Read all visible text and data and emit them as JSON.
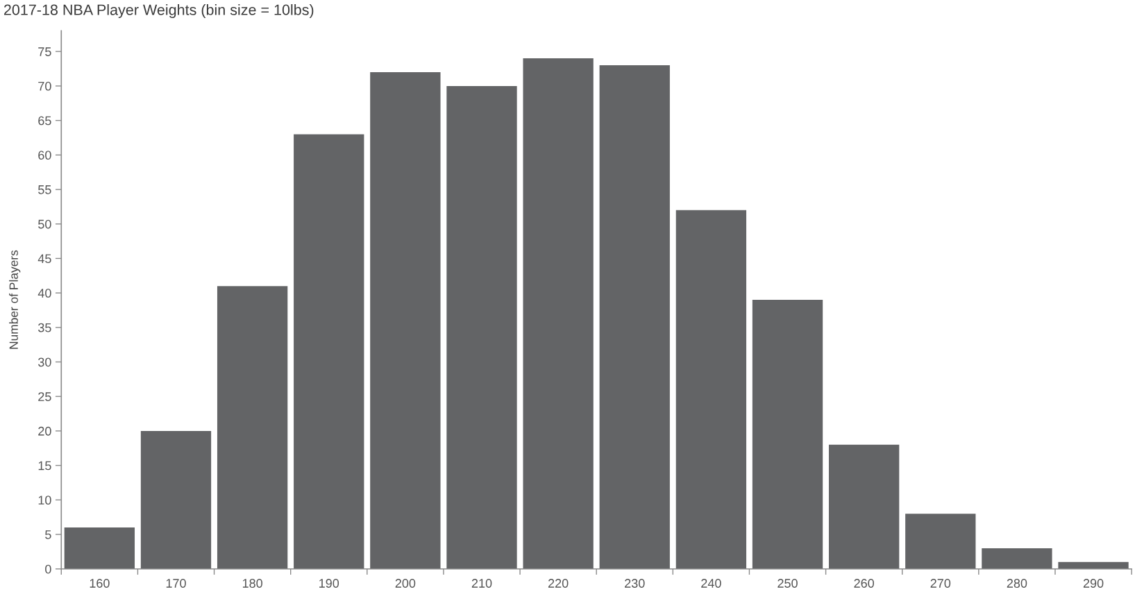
{
  "chart_data": {
    "type": "bar",
    "title": "2017-18 NBA Player Weights (bin size = 10lbs)",
    "ylabel": "Number of Players",
    "categories": [
      "160",
      "170",
      "180",
      "190",
      "200",
      "210",
      "220",
      "230",
      "240",
      "250",
      "260",
      "270",
      "280",
      "290"
    ],
    "values": [
      6,
      20,
      41,
      63,
      72,
      70,
      74,
      73,
      52,
      39,
      18,
      8,
      3,
      1
    ],
    "color": "#636466",
    "ylim": [
      0,
      78
    ],
    "yticks": [
      0,
      5,
      10,
      15,
      20,
      25,
      30,
      35,
      40,
      45,
      50,
      55,
      60,
      65,
      70,
      75
    ]
  }
}
